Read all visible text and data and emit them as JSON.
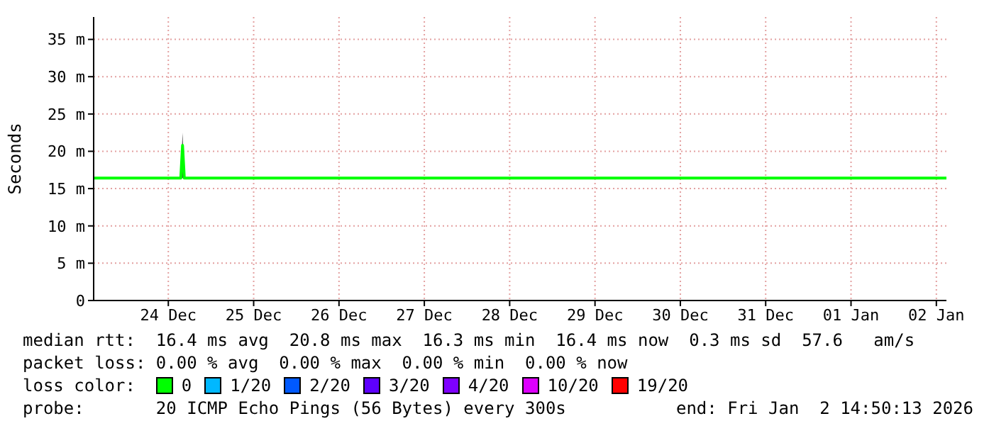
{
  "chart_data": {
    "type": "line",
    "ylabel": "Seconds",
    "legend_title": "loss color:",
    "x": [
      "2025-12-23T15:00",
      "2025-12-24T15:30",
      "2025-12-24T16:00",
      "2025-12-24T16:30",
      "2026-01-02T14:50"
    ],
    "series": [
      {
        "name": "0",
        "color": "#00ff00",
        "values": [
          16.4,
          16.4,
          20.8,
          16.4,
          16.4
        ],
        "lower": [
          null,
          16.4,
          16.4,
          16.4,
          null
        ],
        "upper": [
          null,
          16.4,
          22.5,
          16.4,
          null
        ]
      },
      {
        "name": "1/20",
        "color": "#00b8ff",
        "values": [
          null,
          null,
          null,
          null,
          null
        ]
      },
      {
        "name": "2/20",
        "color": "#0059ff",
        "values": [
          null,
          null,
          null,
          null,
          null
        ]
      },
      {
        "name": "3/20",
        "color": "#5e00ff",
        "values": [
          null,
          null,
          null,
          null,
          null
        ]
      },
      {
        "name": "4/20",
        "color": "#7e00ff",
        "values": [
          null,
          null,
          null,
          null,
          null
        ]
      },
      {
        "name": "10/20",
        "color": "#dd00ff",
        "values": [
          null,
          null,
          null,
          null,
          null
        ]
      },
      {
        "name": "19/20",
        "color": "#ff0000",
        "values": [
          null,
          null,
          null,
          null,
          null
        ]
      }
    ],
    "xlim": [
      "2025-12-23T15:00",
      "2026-01-02T14:50"
    ],
    "xticks": [
      {
        "value": "2025-12-24T12:00",
        "label": "24 Dec"
      },
      {
        "value": "2025-12-25T12:00",
        "label": "25 Dec"
      },
      {
        "value": "2025-12-26T12:00",
        "label": "26 Dec"
      },
      {
        "value": "2025-12-27T12:00",
        "label": "27 Dec"
      },
      {
        "value": "2025-12-28T12:00",
        "label": "28 Dec"
      },
      {
        "value": "2025-12-29T12:00",
        "label": "29 Dec"
      },
      {
        "value": "2025-12-30T12:00",
        "label": "30 Dec"
      },
      {
        "value": "2025-12-31T12:00",
        "label": "31 Dec"
      },
      {
        "value": "2026-01-01T12:00",
        "label": "01 Jan"
      },
      {
        "value": "2026-01-02T12:00",
        "label": "02 Jan"
      }
    ],
    "ylim": [
      0,
      38
    ],
    "yticks": [
      0,
      {
        "value": 5,
        "label": "5 m"
      },
      {
        "value": 10,
        "label": "10 m"
      },
      {
        "value": 15,
        "label": "15 m"
      },
      {
        "value": 20,
        "label": "20 m"
      },
      {
        "value": 25,
        "label": "25 m"
      },
      {
        "value": 30,
        "label": "30 m"
      },
      {
        "value": 35,
        "label": "35 m"
      }
    ],
    "grid": true,
    "legend": "bottom",
    "marker": "none",
    "line_style": "solid",
    "annotations": [
      "median rtt:  16.4 ms avg  20.8 ms max  16.3 ms min  16.4 ms now  0.3 ms sd  57.6   am/s",
      "packet loss: 0.00 % avg  0.00 % max  0.00 % min  0.00 % now",
      "probe:       20 ICMP Echo Pings (56 Bytes) every 300s",
      "end: Fri Jan  2 14:50:13 2026"
    ]
  }
}
